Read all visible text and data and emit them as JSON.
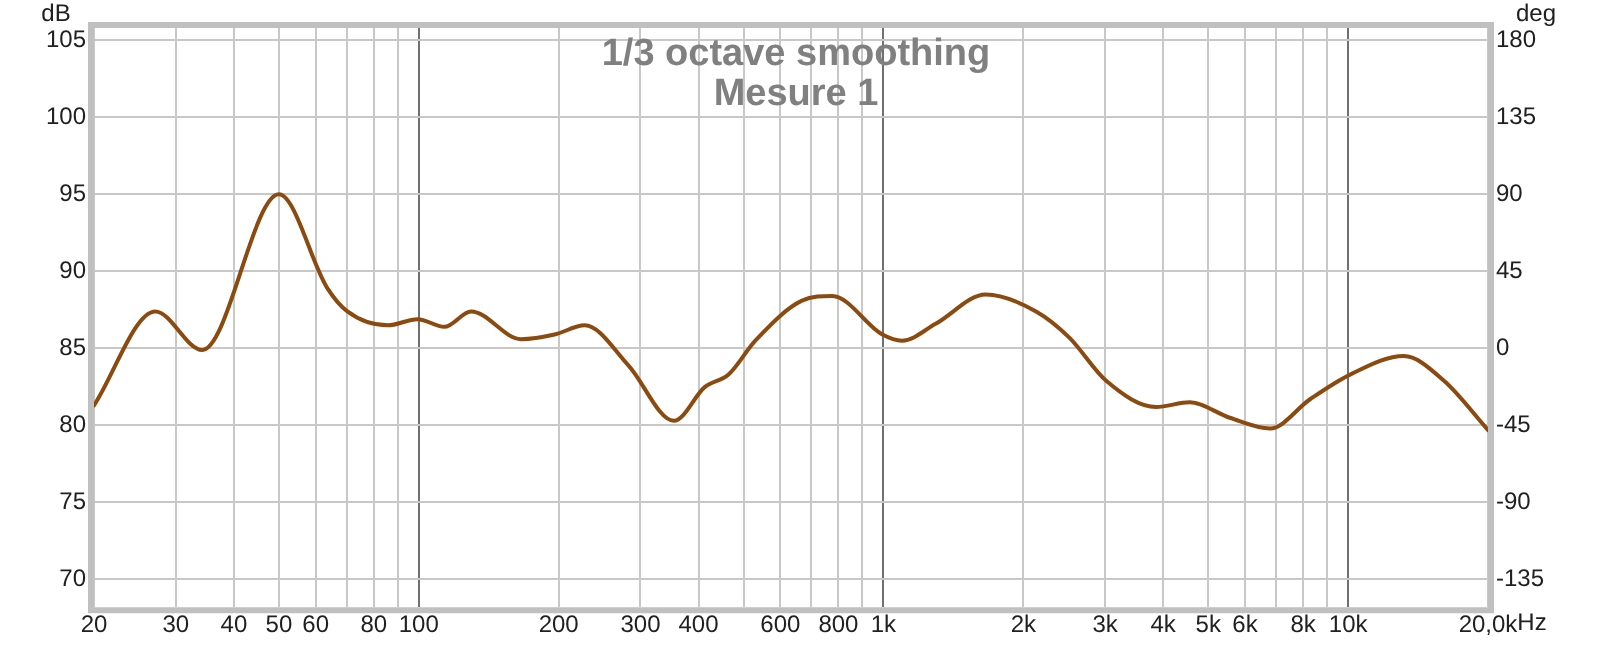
{
  "chart_data": {
    "type": "line",
    "title": "1/3 octave smoothing",
    "subtitle": "Mesure 1",
    "xlabel": "Hz",
    "ylabel": "dB",
    "y2label": "deg",
    "log": "x",
    "grid": true,
    "legend": false,
    "marker": "none",
    "line_style": "solid",
    "x": [
      20,
      27.1,
      34.2,
      50,
      63.6,
      70.2,
      85.7,
      99.4,
      113.5,
      129.6,
      166,
      196,
      227.6,
      282.5,
      354,
      413,
      464,
      530,
      668,
      776,
      995,
      1097,
      1295,
      1660,
      2130,
      2512,
      3015,
      3864,
      4561,
      5563,
      6792,
      8282,
      10100,
      13180,
      16080,
      20000
    ],
    "series": [
      {
        "color": "#8b4a0f",
        "values": [
          81.3,
          87.4,
          84.9,
          95.0,
          88.9,
          87.4,
          86.5,
          86.9,
          86.4,
          87.4,
          85.6,
          85.9,
          86.5,
          83.9,
          80.3,
          82.5,
          83.3,
          85.5,
          88.1,
          88.4,
          85.9,
          85.5,
          86.6,
          88.5,
          87.4,
          85.7,
          82.9,
          81.2,
          81.5,
          80.5,
          79.8,
          81.7,
          83.3,
          84.5,
          82.9,
          79.7
        ]
      }
    ],
    "xlim": [
      20,
      20000
    ],
    "xticks": [
      20,
      30,
      40,
      50,
      60,
      {
        "value": 70,
        "label": null
      },
      80,
      {
        "value": 90,
        "label": null
      },
      100,
      200,
      300,
      400,
      {
        "value": 500,
        "label": null
      },
      600,
      {
        "value": 700,
        "label": null
      },
      800,
      {
        "value": 900,
        "label": null
      },
      {
        "value": 1000,
        "label": "1k"
      },
      {
        "value": 2000,
        "label": "2k"
      },
      {
        "value": 3000,
        "label": "3k"
      },
      {
        "value": 4000,
        "label": "4k"
      },
      {
        "value": 5000,
        "label": "5k"
      },
      {
        "value": 6000,
        "label": "6k"
      },
      {
        "value": 7000,
        "label": null
      },
      {
        "value": 8000,
        "label": "8k"
      },
      {
        "value": 9000,
        "label": null
      },
      {
        "value": 10000,
        "label": "10k"
      },
      {
        "value": 20000,
        "label": "20,0k"
      }
    ],
    "ylim": [
      68.2,
      105.8
    ],
    "yticks": [
      70,
      75,
      80,
      85,
      90,
      95,
      100,
      105
    ],
    "y2lim": [
      -151,
      187
    ],
    "y2ticks": [
      -135,
      -90,
      -45,
      0,
      45,
      90,
      135,
      180
    ]
  }
}
